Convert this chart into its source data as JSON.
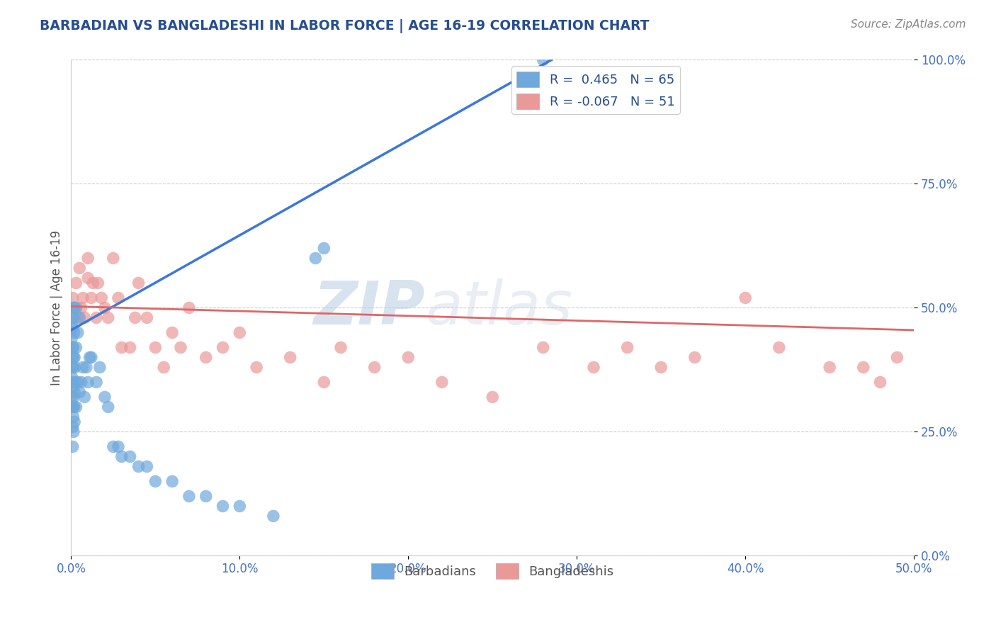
{
  "title": "BARBADIAN VS BANGLADESHI IN LABOR FORCE | AGE 16-19 CORRELATION CHART",
  "source": "Source: ZipAtlas.com",
  "ylabel": "In Labor Force | Age 16-19",
  "xlim": [
    0.0,
    0.5
  ],
  "ylim": [
    0.0,
    1.0
  ],
  "xticks": [
    0.0,
    0.1,
    0.2,
    0.3,
    0.4,
    0.5
  ],
  "xticklabels": [
    "0.0%",
    "10.0%",
    "20.0%",
    "30.0%",
    "40.0%",
    "50.0%"
  ],
  "yticks": [
    0.0,
    0.25,
    0.5,
    0.75,
    1.0
  ],
  "yticklabels": [
    "0.0%",
    "25.0%",
    "50.0%",
    "75.0%",
    "100.0%"
  ],
  "barbadian_color": "#6fa8dc",
  "bangladeshi_color": "#ea9999",
  "barbadian_line_color": "#3c78d8",
  "bangladeshi_line_color": "#e06666",
  "barbadian_R": 0.465,
  "barbadian_N": 65,
  "bangladeshi_R": -0.067,
  "bangladeshi_N": 51,
  "watermark_zip": "ZIP",
  "watermark_atlas": "atlas",
  "background_color": "#ffffff",
  "grid_color": "#cccccc",
  "title_color": "#274e91",
  "legend_label_1": "Barbadians",
  "legend_label_2": "Bangladeshis",
  "barbadian_x": [
    0.0005,
    0.0005,
    0.0005,
    0.0005,
    0.0005,
    0.0007,
    0.0007,
    0.0007,
    0.001,
    0.001,
    0.001,
    0.001,
    0.001,
    0.001,
    0.001,
    0.001,
    0.0013,
    0.0013,
    0.0013,
    0.0015,
    0.0015,
    0.0015,
    0.0015,
    0.0018,
    0.0018,
    0.002,
    0.002,
    0.002,
    0.002,
    0.0022,
    0.0025,
    0.003,
    0.003,
    0.003,
    0.004,
    0.004,
    0.005,
    0.005,
    0.006,
    0.007,
    0.008,
    0.009,
    0.01,
    0.011,
    0.012,
    0.015,
    0.017,
    0.02,
    0.022,
    0.025,
    0.028,
    0.03,
    0.035,
    0.04,
    0.045,
    0.05,
    0.06,
    0.07,
    0.08,
    0.09,
    0.1,
    0.12,
    0.145,
    0.15,
    0.28
  ],
  "barbadian_y": [
    0.32,
    0.36,
    0.4,
    0.44,
    0.48,
    0.3,
    0.38,
    0.46,
    0.22,
    0.26,
    0.3,
    0.34,
    0.38,
    0.42,
    0.46,
    0.5,
    0.28,
    0.35,
    0.42,
    0.25,
    0.32,
    0.4,
    0.48,
    0.3,
    0.45,
    0.27,
    0.33,
    0.4,
    0.5,
    0.38,
    0.35,
    0.3,
    0.42,
    0.5,
    0.35,
    0.45,
    0.33,
    0.48,
    0.35,
    0.38,
    0.32,
    0.38,
    0.35,
    0.4,
    0.4,
    0.35,
    0.38,
    0.32,
    0.3,
    0.22,
    0.22,
    0.2,
    0.2,
    0.18,
    0.18,
    0.15,
    0.15,
    0.12,
    0.12,
    0.1,
    0.1,
    0.08,
    0.6,
    0.62,
    1.0
  ],
  "bangladeshi_x": [
    0.001,
    0.002,
    0.003,
    0.004,
    0.005,
    0.006,
    0.007,
    0.008,
    0.01,
    0.01,
    0.012,
    0.013,
    0.015,
    0.016,
    0.018,
    0.02,
    0.022,
    0.025,
    0.028,
    0.03,
    0.035,
    0.038,
    0.04,
    0.045,
    0.05,
    0.055,
    0.06,
    0.065,
    0.07,
    0.08,
    0.09,
    0.1,
    0.11,
    0.13,
    0.15,
    0.16,
    0.18,
    0.2,
    0.22,
    0.25,
    0.28,
    0.31,
    0.33,
    0.35,
    0.37,
    0.4,
    0.42,
    0.45,
    0.47,
    0.49,
    0.48
  ],
  "bangladeshi_y": [
    0.52,
    0.5,
    0.55,
    0.48,
    0.58,
    0.5,
    0.52,
    0.48,
    0.6,
    0.56,
    0.52,
    0.55,
    0.48,
    0.55,
    0.52,
    0.5,
    0.48,
    0.6,
    0.52,
    0.42,
    0.42,
    0.48,
    0.55,
    0.48,
    0.42,
    0.38,
    0.45,
    0.42,
    0.5,
    0.4,
    0.42,
    0.45,
    0.38,
    0.4,
    0.35,
    0.42,
    0.38,
    0.4,
    0.35,
    0.32,
    0.42,
    0.38,
    0.42,
    0.38,
    0.4,
    0.52,
    0.42,
    0.38,
    0.38,
    0.4,
    0.35
  ],
  "blue_line_x0": 0.0,
  "blue_line_y0": 0.455,
  "blue_line_x1": 0.285,
  "blue_line_y1": 1.0,
  "pink_line_x0": 0.0,
  "pink_line_y0": 0.503,
  "pink_line_x1": 0.5,
  "pink_line_y1": 0.455
}
